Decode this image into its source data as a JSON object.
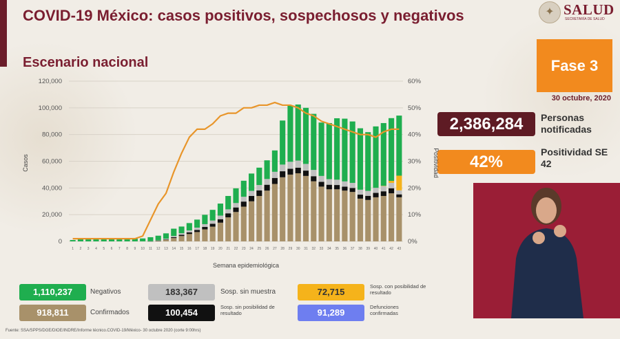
{
  "header": {
    "title": "COVID-19 México: casos positivos, sospechosos y negativos",
    "subtitle": "Escenario nacional",
    "logo_text": "SALUD",
    "logo_subtext": "SECRETARÍA DE SALUD"
  },
  "phase": {
    "label": "Fase 3",
    "date": "30 octubre, 2020"
  },
  "stats": {
    "notified_value": "2,386,284",
    "notified_label": "Personas notificadas",
    "positivity_value": "42%",
    "positivity_label": "Positividad SE 42"
  },
  "legend": {
    "negativos": {
      "value": "1,110,237",
      "label": "Negativos"
    },
    "confirmados": {
      "value": "918,811",
      "label": "Confirmados"
    },
    "sosp_sin_muestra": {
      "value": "183,367",
      "label": "Sosp. sin muestra"
    },
    "sosp_sin_posibilidad": {
      "value": "100,454",
      "label": "Sosp. sin posibilidad de resultado"
    },
    "sosp_con_posibilidad": {
      "value": "72,715",
      "label": "Sosp. con posibilidad de resultado"
    },
    "defunciones": {
      "value": "91,289",
      "label": "Defunciones confirmadas"
    }
  },
  "footer": "Fuente: SSA/SPPS/DGE/DIOE/INDRE/Informe técnico.COVID-19/México- 30 octubre 2020 (corte 9:00hrs)",
  "colors": {
    "negativos": "#1fae4f",
    "confirmados": "#a8916a",
    "sosp_sin_muestra": "#c0c0c0",
    "sosp_sin_posibilidad": "#111111",
    "sosp_con_posibilidad": "#f5b31b",
    "defunciones": "#6e7ef0",
    "positivity_line": "#e8952a"
  },
  "chart_data": {
    "type": "bar",
    "stacked": true,
    "categories": [
      "1",
      "2",
      "3",
      "4",
      "5",
      "6",
      "7",
      "8",
      "9",
      "10",
      "11",
      "12",
      "13",
      "14",
      "15",
      "16",
      "17",
      "18",
      "19",
      "20",
      "21",
      "22",
      "23",
      "24",
      "25",
      "26",
      "27",
      "28",
      "29",
      "30",
      "31",
      "32",
      "33",
      "34",
      "35",
      "36",
      "37",
      "38",
      "39",
      "40",
      "41",
      "42",
      "43"
    ],
    "xlabel": "Semana epidemiológica",
    "ylabel": "Casos",
    "y2label": "Positividad",
    "ylim": [
      0,
      120000
    ],
    "y2lim": [
      0,
      60
    ],
    "yticks": [
      "0",
      "20,000",
      "40,000",
      "60,000",
      "80,000",
      "100,000",
      "120,000"
    ],
    "y2ticks": [
      "0%",
      "10%",
      "20%",
      "30%",
      "40%",
      "50%",
      "60%"
    ],
    "series": [
      {
        "name": "Confirmados",
        "values": [
          0,
          0,
          0,
          0,
          0,
          0,
          0,
          0,
          0,
          0,
          50,
          400,
          1200,
          2500,
          4000,
          5500,
          7000,
          9000,
          11000,
          14000,
          18000,
          22000,
          26000,
          30000,
          34000,
          38000,
          43000,
          48000,
          50000,
          51000,
          49000,
          45000,
          41000,
          39000,
          39000,
          38000,
          37000,
          32000,
          31000,
          33000,
          34000,
          36000,
          33000
        ]
      },
      {
        "name": "Sosp. sin posibilidad de resultado",
        "values": [
          0,
          0,
          0,
          0,
          0,
          0,
          0,
          0,
          0,
          0,
          30,
          150,
          300,
          600,
          900,
          1200,
          1500,
          1800,
          2200,
          2600,
          3000,
          3400,
          3800,
          4000,
          4200,
          4400,
          4500,
          4500,
          4400,
          4200,
          4000,
          3800,
          3600,
          3400,
          3200,
          3000,
          3000,
          3000,
          3100,
          3300,
          3500,
          3800,
          2200
        ]
      },
      {
        "name": "Sosp. sin muestra",
        "values": [
          0,
          0,
          0,
          0,
          0,
          0,
          0,
          0,
          0,
          0,
          40,
          200,
          500,
          900,
          1200,
          1500,
          1800,
          2100,
          2400,
          2700,
          3000,
          3300,
          3600,
          3800,
          4000,
          4300,
          4600,
          5000,
          5200,
          5300,
          5000,
          4700,
          4400,
          4200,
          4000,
          3900,
          3800,
          3700,
          3700,
          3800,
          3900,
          4000,
          3000
        ]
      },
      {
        "name": "Sosp. con posibilidad de resultado",
        "values": [
          0,
          0,
          0,
          0,
          0,
          0,
          0,
          0,
          0,
          0,
          0,
          0,
          0,
          0,
          0,
          0,
          0,
          0,
          0,
          0,
          0,
          0,
          0,
          0,
          0,
          0,
          0,
          0,
          0,
          0,
          0,
          0,
          0,
          0,
          0,
          0,
          0,
          0,
          0,
          0,
          200,
          1500,
          11000
        ]
      },
      {
        "name": "Negativos",
        "values": [
          1000,
          2000,
          2200,
          2500,
          2300,
          2200,
          2000,
          1900,
          2000,
          2200,
          3000,
          3500,
          4000,
          5500,
          5000,
          5500,
          6000,
          7000,
          8000,
          9000,
          10000,
          11000,
          12000,
          13000,
          13000,
          14000,
          16000,
          33000,
          42000,
          42000,
          42000,
          42000,
          40000,
          42000,
          46000,
          47000,
          46000,
          46000,
          44000,
          46000,
          47000,
          47000,
          45000
        ]
      }
    ],
    "positivity": [
      1,
      1,
      1,
      1,
      1,
      1,
      1,
      1,
      1,
      2,
      8,
      14,
      18,
      26,
      33,
      39,
      42,
      42,
      44,
      47,
      48,
      48,
      50,
      50,
      51,
      51,
      52,
      51,
      51,
      50,
      48,
      47,
      45,
      44,
      43,
      42,
      41,
      40,
      40,
      39,
      41,
      42,
      42
    ]
  }
}
